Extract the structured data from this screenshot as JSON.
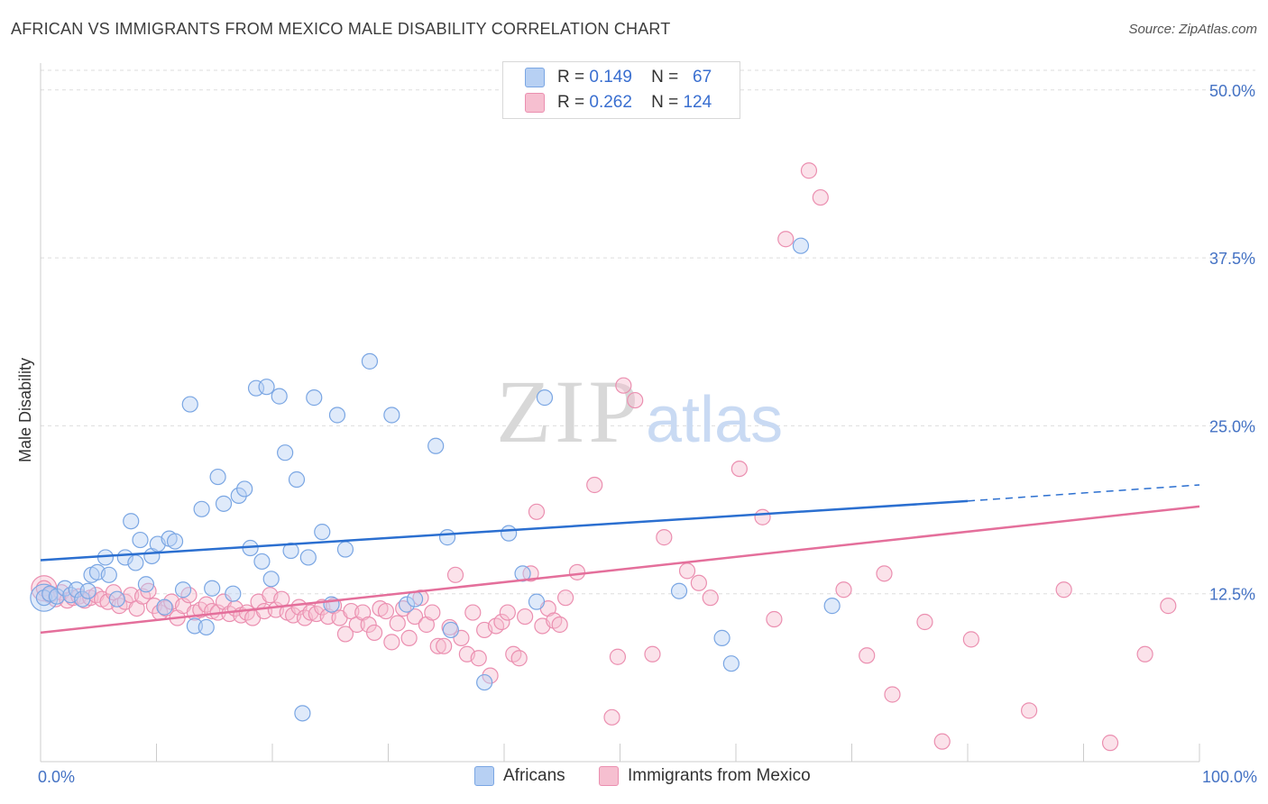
{
  "title": "AFRICAN VS IMMIGRANTS FROM MEXICO MALE DISABILITY CORRELATION CHART",
  "source": "Source: ZipAtlas.com",
  "watermark": {
    "zip": "ZIP",
    "atlas": "atlas"
  },
  "colors": {
    "blue_fill": "#b7d0f3",
    "blue_stroke": "#7aa6e3",
    "blue_line": "#2b6fd0",
    "pink_fill": "#f6bfd0",
    "pink_stroke": "#eb8fb0",
    "pink_line": "#e46f9b",
    "axis_text": "#4472c4",
    "grid": "#dddddd"
  },
  "stats": [
    {
      "r_label": "R =",
      "r": "0.149",
      "n_label": "N =",
      "n": "67",
      "color": "#b7d0f3"
    },
    {
      "r_label": "R =",
      "r": "0.262",
      "n_label": "N =",
      "n": "124",
      "color": "#f6bfd0"
    }
  ],
  "chart_data": {
    "type": "scatter",
    "title": "AFRICAN VS IMMIGRANTS FROM MEXICO MALE DISABILITY CORRELATION CHART",
    "xlabel": "",
    "ylabel": "Male Disability",
    "xlim": [
      0,
      100
    ],
    "ylim": [
      0,
      52
    ],
    "x_tick_labels": [
      "0.0%",
      "100.0%"
    ],
    "y_ticks": [
      12.5,
      25.0,
      37.5,
      50.0
    ],
    "y_tick_labels": [
      "12.5%",
      "25.0%",
      "37.5%",
      "50.0%"
    ],
    "grid": true,
    "legend_position": "bottom-center",
    "series": [
      {
        "name": "Africans",
        "trend": {
          "x0": 0,
          "y0": 15.0,
          "x1": 80,
          "y1": 19.4,
          "dash_x1": 100,
          "dash_y1": 20.6
        },
        "points": [
          [
            0.3,
            12.2
          ],
          [
            0.8,
            12.5
          ],
          [
            1.4,
            12.3
          ],
          [
            2.1,
            12.9
          ],
          [
            2.6,
            12.4
          ],
          [
            3.1,
            12.8
          ],
          [
            3.6,
            12.1
          ],
          [
            4.1,
            12.7
          ],
          [
            4.4,
            13.9
          ],
          [
            4.9,
            14.1
          ],
          [
            5.6,
            15.2
          ],
          [
            5.9,
            13.9
          ],
          [
            6.6,
            12.1
          ],
          [
            7.3,
            15.2
          ],
          [
            7.8,
            17.9
          ],
          [
            8.2,
            14.8
          ],
          [
            8.6,
            16.5
          ],
          [
            9.1,
            13.2
          ],
          [
            9.6,
            15.3
          ],
          [
            10.1,
            16.2
          ],
          [
            10.7,
            11.5
          ],
          [
            11.1,
            16.6
          ],
          [
            11.6,
            16.4
          ],
          [
            12.3,
            12.8
          ],
          [
            12.9,
            26.6
          ],
          [
            13.3,
            10.1
          ],
          [
            13.9,
            18.8
          ],
          [
            14.3,
            10.0
          ],
          [
            14.8,
            12.9
          ],
          [
            15.3,
            21.2
          ],
          [
            15.8,
            19.2
          ],
          [
            16.6,
            12.5
          ],
          [
            17.1,
            19.8
          ],
          [
            17.6,
            20.3
          ],
          [
            18.1,
            15.9
          ],
          [
            18.6,
            27.8
          ],
          [
            19.1,
            14.9
          ],
          [
            19.5,
            27.9
          ],
          [
            19.9,
            13.6
          ],
          [
            20.6,
            27.2
          ],
          [
            21.1,
            23.0
          ],
          [
            21.6,
            15.7
          ],
          [
            22.1,
            21.0
          ],
          [
            22.6,
            3.6
          ],
          [
            23.1,
            15.2
          ],
          [
            23.6,
            27.1
          ],
          [
            24.3,
            17.1
          ],
          [
            25.1,
            11.7
          ],
          [
            25.6,
            25.8
          ],
          [
            26.3,
            15.8
          ],
          [
            28.4,
            29.8
          ],
          [
            30.3,
            25.8
          ],
          [
            31.6,
            11.7
          ],
          [
            32.3,
            12.1
          ],
          [
            34.1,
            23.5
          ],
          [
            35.1,
            16.7
          ],
          [
            35.4,
            9.8
          ],
          [
            38.3,
            5.9
          ],
          [
            40.4,
            17.0
          ],
          [
            41.6,
            14.0
          ],
          [
            42.8,
            11.9
          ],
          [
            43.5,
            27.1
          ],
          [
            55.1,
            12.7
          ],
          [
            58.8,
            9.2
          ],
          [
            59.6,
            7.3
          ],
          [
            65.6,
            38.4
          ],
          [
            68.3,
            11.6
          ]
        ]
      },
      {
        "name": "Immigrants from Mexico",
        "trend": {
          "x0": 0,
          "y0": 9.6,
          "x1": 100,
          "y1": 19.0
        },
        "points": [
          [
            0.3,
            12.9
          ],
          [
            0.8,
            12.4
          ],
          [
            1.3,
            12.1
          ],
          [
            1.8,
            12.6
          ],
          [
            2.3,
            12.0
          ],
          [
            2.8,
            12.2
          ],
          [
            3.3,
            12.3
          ],
          [
            3.8,
            12.0
          ],
          [
            4.3,
            12.2
          ],
          [
            4.8,
            12.4
          ],
          [
            5.3,
            12.1
          ],
          [
            5.8,
            11.9
          ],
          [
            6.3,
            12.6
          ],
          [
            6.8,
            11.6
          ],
          [
            7.3,
            11.9
          ],
          [
            7.8,
            12.4
          ],
          [
            8.3,
            11.4
          ],
          [
            8.8,
            12.3
          ],
          [
            9.3,
            12.7
          ],
          [
            9.8,
            11.6
          ],
          [
            10.3,
            11.1
          ],
          [
            10.8,
            11.4
          ],
          [
            11.3,
            11.9
          ],
          [
            11.8,
            10.7
          ],
          [
            12.3,
            11.6
          ],
          [
            12.8,
            12.4
          ],
          [
            13.3,
            11.1
          ],
          [
            13.8,
            11.3
          ],
          [
            14.3,
            11.7
          ],
          [
            14.8,
            11.2
          ],
          [
            15.3,
            11.1
          ],
          [
            15.8,
            11.9
          ],
          [
            16.3,
            11.0
          ],
          [
            16.8,
            11.4
          ],
          [
            17.3,
            10.9
          ],
          [
            17.8,
            11.1
          ],
          [
            18.3,
            10.7
          ],
          [
            18.8,
            11.9
          ],
          [
            19.3,
            11.2
          ],
          [
            19.8,
            12.4
          ],
          [
            20.3,
            11.3
          ],
          [
            20.8,
            12.1
          ],
          [
            21.3,
            11.1
          ],
          [
            21.8,
            10.9
          ],
          [
            22.3,
            11.5
          ],
          [
            22.8,
            10.7
          ],
          [
            23.3,
            11.1
          ],
          [
            23.8,
            11.0
          ],
          [
            24.3,
            11.5
          ],
          [
            24.8,
            10.8
          ],
          [
            25.3,
            11.6
          ],
          [
            25.8,
            10.7
          ],
          [
            26.3,
            9.5
          ],
          [
            26.8,
            11.2
          ],
          [
            27.3,
            10.2
          ],
          [
            27.8,
            11.1
          ],
          [
            28.3,
            10.2
          ],
          [
            28.8,
            9.6
          ],
          [
            29.3,
            11.4
          ],
          [
            29.8,
            11.2
          ],
          [
            30.3,
            8.9
          ],
          [
            30.8,
            10.3
          ],
          [
            31.3,
            11.4
          ],
          [
            31.8,
            9.2
          ],
          [
            32.3,
            10.8
          ],
          [
            32.8,
            12.2
          ],
          [
            33.3,
            10.2
          ],
          [
            33.8,
            11.1
          ],
          [
            34.3,
            8.6
          ],
          [
            34.8,
            8.6
          ],
          [
            35.3,
            10.0
          ],
          [
            35.8,
            13.9
          ],
          [
            36.3,
            9.2
          ],
          [
            36.8,
            8.0
          ],
          [
            37.3,
            11.1
          ],
          [
            37.8,
            7.7
          ],
          [
            38.3,
            9.8
          ],
          [
            38.8,
            6.4
          ],
          [
            39.3,
            10.1
          ],
          [
            39.8,
            10.4
          ],
          [
            40.3,
            11.1
          ],
          [
            40.8,
            8.0
          ],
          [
            41.3,
            7.7
          ],
          [
            41.8,
            10.8
          ],
          [
            42.3,
            14.0
          ],
          [
            42.8,
            18.6
          ],
          [
            43.3,
            10.1
          ],
          [
            43.8,
            11.4
          ],
          [
            44.3,
            10.5
          ],
          [
            44.8,
            10.2
          ],
          [
            45.3,
            12.2
          ],
          [
            46.3,
            14.1
          ],
          [
            47.8,
            20.6
          ],
          [
            49.3,
            3.3
          ],
          [
            49.8,
            7.8
          ],
          [
            50.3,
            28.0
          ],
          [
            51.3,
            26.9
          ],
          [
            52.8,
            8.0
          ],
          [
            53.8,
            16.7
          ],
          [
            55.8,
            14.2
          ],
          [
            56.8,
            13.3
          ],
          [
            57.8,
            12.2
          ],
          [
            60.3,
            21.8
          ],
          [
            62.3,
            18.2
          ],
          [
            63.3,
            10.6
          ],
          [
            64.3,
            38.9
          ],
          [
            66.3,
            44.0
          ],
          [
            67.3,
            42.0
          ],
          [
            69.3,
            12.8
          ],
          [
            71.3,
            7.9
          ],
          [
            72.8,
            14.0
          ],
          [
            73.5,
            5.0
          ],
          [
            76.3,
            10.4
          ],
          [
            77.8,
            1.5
          ],
          [
            80.3,
            9.1
          ],
          [
            85.3,
            3.8
          ],
          [
            88.3,
            12.8
          ],
          [
            92.3,
            1.4
          ],
          [
            95.3,
            8.0
          ],
          [
            97.3,
            11.6
          ]
        ]
      }
    ]
  }
}
